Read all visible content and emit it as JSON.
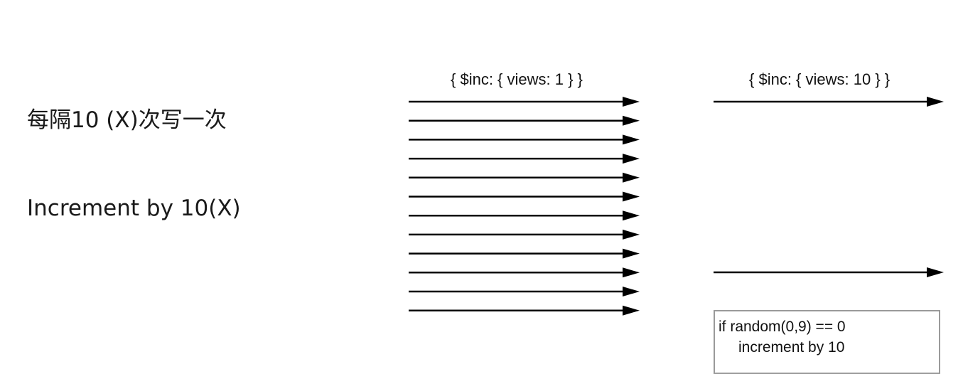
{
  "labels": {
    "chinese": "每隔10 (X)次写一次",
    "english": "Increment by 10(X)"
  },
  "operations": {
    "per_write": "{ $inc: { views: 1 } }",
    "batched": "{ $inc: { views: 10 } }"
  },
  "left_arrow_count": 12,
  "right_arrow_count": 2,
  "note": {
    "line1": "if random(0,9) == 0",
    "line2": "increment by 10"
  }
}
